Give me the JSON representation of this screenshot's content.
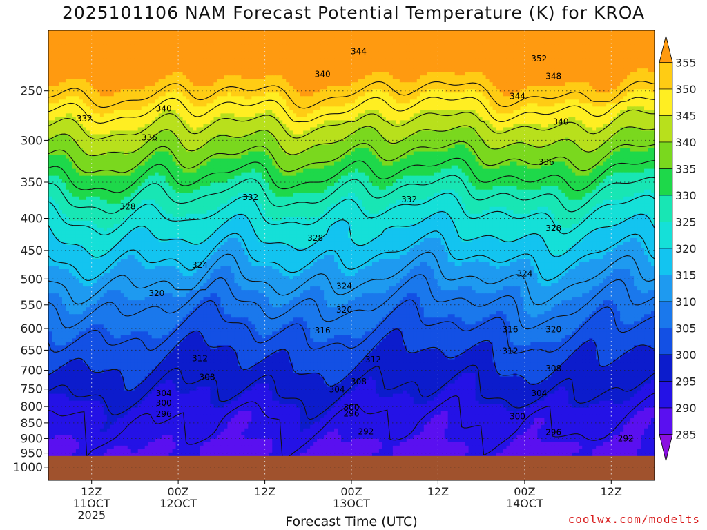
{
  "title": "2025101106 NAM Forecast Potential Temperature (K) for KROA",
  "credit": "coolwx.com/modelts",
  "chart_data": {
    "type": "heatmap",
    "title": "2025101106 NAM Forecast Potential Temperature (K) for KROA",
    "xlabel": "Forecast Time (UTC)",
    "ylabel": "",
    "y_scale": "log",
    "ylim": [
      1050,
      200
    ],
    "y_ticks": [
      250,
      300,
      350,
      400,
      450,
      500,
      550,
      600,
      650,
      700,
      750,
      800,
      850,
      900,
      950,
      1000
    ],
    "x_ticks": [
      {
        "hour": 6,
        "label": [
          "12Z",
          "11OCT",
          "2025"
        ]
      },
      {
        "hour": 18,
        "label": [
          "00Z",
          "12OCT"
        ]
      },
      {
        "hour": 30,
        "label": [
          "12Z"
        ]
      },
      {
        "hour": 42,
        "label": [
          "00Z",
          "13OCT"
        ]
      },
      {
        "hour": 54,
        "label": [
          "12Z"
        ]
      },
      {
        "hour": 66,
        "label": [
          "00Z",
          "14OCT"
        ]
      },
      {
        "hour": 78,
        "label": [
          "12Z"
        ]
      }
    ],
    "xlim": [
      0,
      84
    ],
    "colorbar": {
      "levels": [
        285,
        290,
        295,
        300,
        305,
        310,
        315,
        320,
        325,
        330,
        335,
        340,
        345,
        350,
        355
      ],
      "colors": [
        "#8a10e0",
        "#5a10f0",
        "#2412e6",
        "#0c1ccc",
        "#1350e4",
        "#1a78ec",
        "#1e9af0",
        "#13c4f0",
        "#15e0d8",
        "#18e6b4",
        "#1ed84a",
        "#7ad81e",
        "#b8e01c",
        "#ffee22",
        "#ffcc14",
        "#ff9a10"
      ]
    },
    "contour_levels": [
      292,
      296,
      300,
      304,
      308,
      312,
      316,
      320,
      324,
      328,
      332,
      336,
      340,
      344,
      348,
      352
    ],
    "contour_labels": [
      {
        "value": "344",
        "hour": 43,
        "p": 216
      },
      {
        "value": "352",
        "hour": 68,
        "p": 222
      },
      {
        "value": "340",
        "hour": 38,
        "p": 235
      },
      {
        "value": "348",
        "hour": 70,
        "p": 237
      },
      {
        "value": "344",
        "hour": 65,
        "p": 255
      },
      {
        "value": "340",
        "hour": 16,
        "p": 267
      },
      {
        "value": "332",
        "hour": 5,
        "p": 277
      },
      {
        "value": "340",
        "hour": 71,
        "p": 280
      },
      {
        "value": "336",
        "hour": 14,
        "p": 297
      },
      {
        "value": "336",
        "hour": 69,
        "p": 325
      },
      {
        "value": "332",
        "hour": 28,
        "p": 370
      },
      {
        "value": "332",
        "hour": 50,
        "p": 373
      },
      {
        "value": "328",
        "hour": 11,
        "p": 383
      },
      {
        "value": "328",
        "hour": 70,
        "p": 415
      },
      {
        "value": "328",
        "hour": 37,
        "p": 430
      },
      {
        "value": "324",
        "hour": 21,
        "p": 475
      },
      {
        "value": "324",
        "hour": 66,
        "p": 490
      },
      {
        "value": "324",
        "hour": 41,
        "p": 513
      },
      {
        "value": "320",
        "hour": 15,
        "p": 527
      },
      {
        "value": "320",
        "hour": 41,
        "p": 560
      },
      {
        "value": "316",
        "hour": 38,
        "p": 605
      },
      {
        "value": "316",
        "hour": 64,
        "p": 602
      },
      {
        "value": "320",
        "hour": 70,
        "p": 602
      },
      {
        "value": "312",
        "hour": 64,
        "p": 652
      },
      {
        "value": "312",
        "hour": 21,
        "p": 670
      },
      {
        "value": "312",
        "hour": 45,
        "p": 673
      },
      {
        "value": "308",
        "hour": 70,
        "p": 695
      },
      {
        "value": "308",
        "hour": 22,
        "p": 718
      },
      {
        "value": "308",
        "hour": 43,
        "p": 730
      },
      {
        "value": "304",
        "hour": 40,
        "p": 752
      },
      {
        "value": "304",
        "hour": 16,
        "p": 762
      },
      {
        "value": "304",
        "hour": 68,
        "p": 762
      },
      {
        "value": "300",
        "hour": 16,
        "p": 790
      },
      {
        "value": "300",
        "hour": 42,
        "p": 803
      },
      {
        "value": "296",
        "hour": 42,
        "p": 822
      },
      {
        "value": "296",
        "hour": 16,
        "p": 823
      },
      {
        "value": "300",
        "hour": 65,
        "p": 830
      },
      {
        "value": "292",
        "hour": 44,
        "p": 878
      },
      {
        "value": "296",
        "hour": 70,
        "p": 880
      },
      {
        "value": "292",
        "hour": 80,
        "p": 900
      }
    ],
    "terrain": {
      "color": "#a0522d",
      "surface_p": 960
    }
  }
}
